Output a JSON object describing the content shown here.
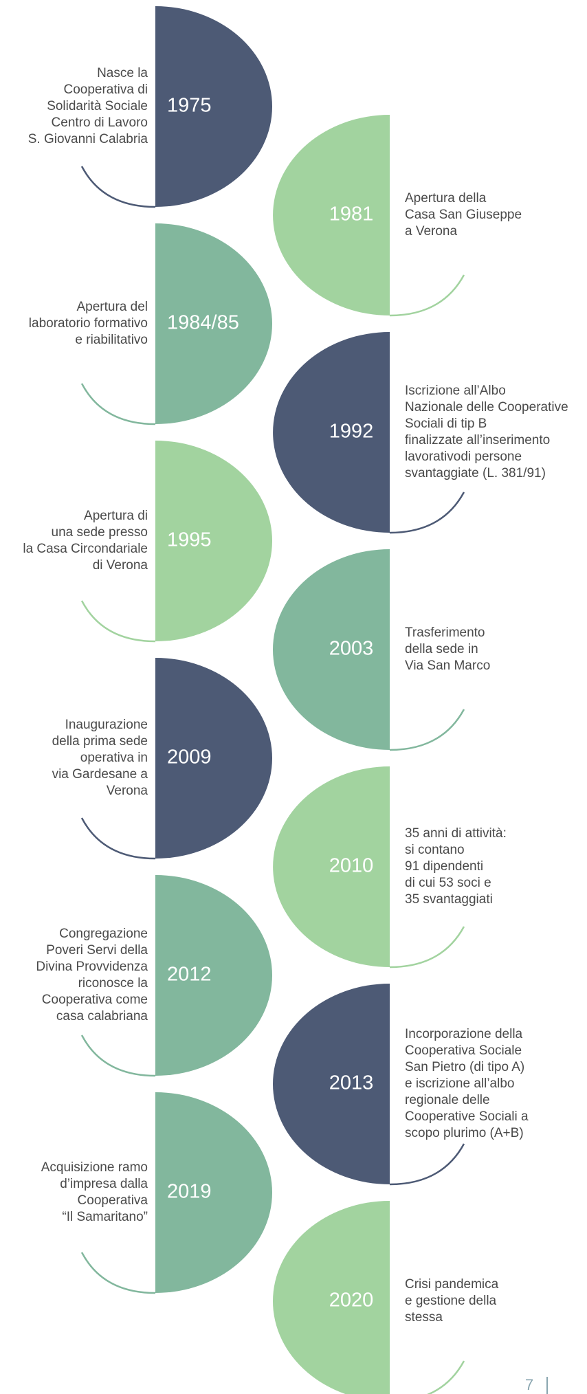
{
  "timeline": [
    {
      "year": "1975",
      "side": "left",
      "color": "#4d5a75",
      "lines": [
        "Nasce la",
        "Cooperativa di",
        "Solidarità Sociale",
        "Centro di Lavoro",
        "S. Giovanni Calabria"
      ]
    },
    {
      "year": "1981",
      "side": "right",
      "color": "#a2d39f",
      "lines": [
        "Apertura della",
        "Casa San Giuseppe",
        "a Verona"
      ]
    },
    {
      "year": "1984/85",
      "side": "left",
      "color": "#82b79d",
      "lines": [
        "Apertura del",
        "laboratorio formativo",
        "e riabilitativo"
      ]
    },
    {
      "year": "1992",
      "side": "right",
      "color": "#4d5a75",
      "lines": [
        "Iscrizione all’Albo",
        "Nazionale delle Cooperative",
        "Sociali di tip B",
        "finalizzate all’inserimento",
        "lavorativodi persone",
        "svantaggiate (L. 381/91)"
      ]
    },
    {
      "year": "1995",
      "side": "left",
      "color": "#a2d39f",
      "lines": [
        "Apertura di",
        "una sede presso",
        "la Casa Circondariale",
        "di Verona"
      ]
    },
    {
      "year": "2003",
      "side": "right",
      "color": "#82b79d",
      "lines": [
        "Trasferimento",
        "della sede in",
        "Via San Marco"
      ]
    },
    {
      "year": "2009",
      "side": "left",
      "color": "#4d5a75",
      "lines": [
        "Inaugurazione",
        "della prima sede",
        "operativa in",
        "via Gardesane a",
        "Verona"
      ]
    },
    {
      "year": "2010",
      "side": "right",
      "color": "#a2d39f",
      "lines": [
        "35 anni di attività:",
        "si contano",
        "91 dipendenti",
        "di cui 53 soci e",
        "35 svantaggiati"
      ]
    },
    {
      "year": "2012",
      "side": "left",
      "color": "#82b79d",
      "lines": [
        "Congregazione",
        "Poveri Servi della",
        "Divina Provvidenza",
        "riconosce la",
        "Cooperativa come",
        "casa calabriana"
      ]
    },
    {
      "year": "2013",
      "side": "right",
      "color": "#4d5a75",
      "lines": [
        "Incorporazione della",
        "Cooperativa Sociale",
        "San Pietro (di tipo A)",
        "e iscrizione all’albo",
        "regionale delle",
        "Cooperative Sociali a",
        "scopo plurimo (A+B)"
      ]
    },
    {
      "year": "2019",
      "side": "left",
      "color": "#82b79d",
      "lines": [
        "Acquisizione ramo",
        "d’impresa dalla",
        "Cooperativa",
        "“Il Samaritano”"
      ]
    },
    {
      "year": "2020",
      "side": "right",
      "color": "#a2d39f",
      "lines": [
        "Crisi pandemica",
        "e gestione della",
        "stessa"
      ]
    }
  ],
  "page_number": "7"
}
